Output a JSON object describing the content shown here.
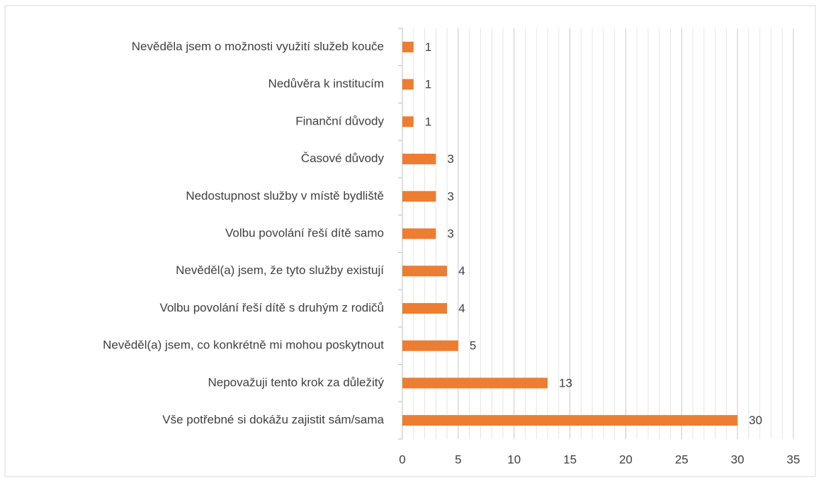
{
  "chart_data": {
    "type": "barh",
    "categories": [
      "Nevěděla jsem o možnosti využití služeb kouče",
      "Nedůvěra k institucím",
      "Finanční důvody",
      "Časové důvody",
      "Nedostupnost služby v místě bydliště",
      "Volbu povolání řeší dítě samo",
      "Nevěděl(a) jsem, že tyto služby existují",
      "Volbu povolání řeší dítě s druhým z rodičů",
      "Nevěděl(a) jsem, co konkrétně mi mohou poskytnout",
      "Nepovažuji tento krok za důležitý",
      "Vše potřebné si dokážu zajistit sám/sama"
    ],
    "values": [
      1,
      1,
      1,
      3,
      3,
      3,
      4,
      4,
      5,
      13,
      30
    ],
    "color": "#ed7d31",
    "xlim": [
      0,
      35
    ],
    "xticks": [
      0,
      5,
      10,
      15,
      20,
      25,
      30,
      35
    ],
    "grid": true
  }
}
